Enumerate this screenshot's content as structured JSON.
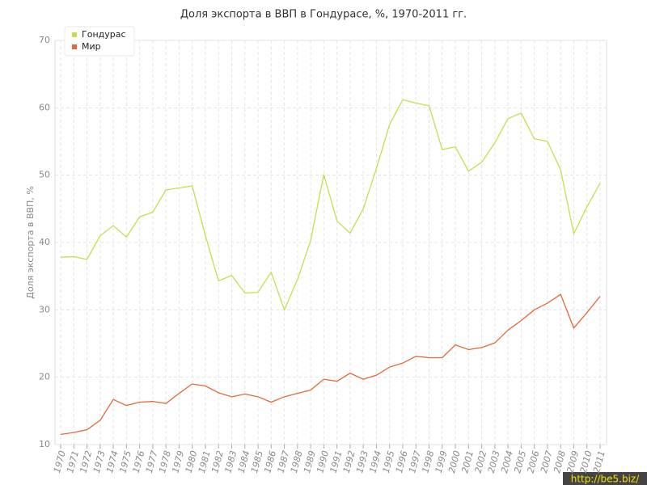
{
  "chart_data": {
    "type": "line",
    "title": "Доля экспорта в ВВП в Гондурасе, %, 1970-2011 гг.",
    "y_label": "Доля экспорта в ВВП, %",
    "categories": [
      "1970",
      "1971",
      "1972",
      "1973",
      "1974",
      "1975",
      "1976",
      "1977",
      "1978",
      "1979",
      "1980",
      "1981",
      "1982",
      "1983",
      "1984",
      "1985",
      "1986",
      "1987",
      "1988",
      "1989",
      "1990",
      "1991",
      "1992",
      "1993",
      "1994",
      "1995",
      "1996",
      "1997",
      "1998",
      "1999",
      "2000",
      "2001",
      "2002",
      "2003",
      "2004",
      "2005",
      "2006",
      "2007",
      "2008",
      "2009",
      "2010",
      "2011"
    ],
    "series": [
      {
        "name": "Гондурас",
        "color": "#c5df4c",
        "values": [
          37.8,
          37.9,
          37.5,
          41.0,
          42.5,
          40.8,
          43.8,
          44.5,
          47.8,
          48.1,
          48.4,
          41.0,
          34.3,
          35.1,
          32.5,
          32.6,
          35.6,
          30.0,
          34.5,
          40.3,
          50.1,
          43.2,
          41.4,
          45.0,
          51.0,
          57.5,
          61.2,
          60.7,
          60.3,
          53.8,
          54.2,
          50.6,
          51.9,
          54.8,
          58.4,
          59.2,
          55.4,
          55.0,
          50.8,
          41.3,
          45.3,
          48.8
        ]
      },
      {
        "name": "Мир",
        "color": "#e06a3a",
        "values": [
          11.5,
          11.8,
          12.2,
          13.6,
          16.7,
          15.8,
          16.3,
          16.4,
          16.1,
          17.6,
          19.0,
          18.7,
          17.7,
          17.1,
          17.5,
          17.1,
          16.3,
          17.1,
          17.6,
          18.1,
          19.7,
          19.4,
          20.6,
          19.7,
          20.3,
          21.5,
          22.1,
          23.1,
          22.9,
          22.9,
          24.8,
          24.1,
          24.4,
          25.1,
          27.0,
          28.4,
          30.0,
          31.0,
          32.3,
          27.3,
          29.6,
          32.0
        ]
      }
    ],
    "ylim": [
      10,
      70
    ],
    "yticks": [
      10,
      20,
      30,
      40,
      50,
      60,
      70
    ],
    "grid": true,
    "legend": "top-left"
  },
  "watermark": "http://be5.biz/"
}
